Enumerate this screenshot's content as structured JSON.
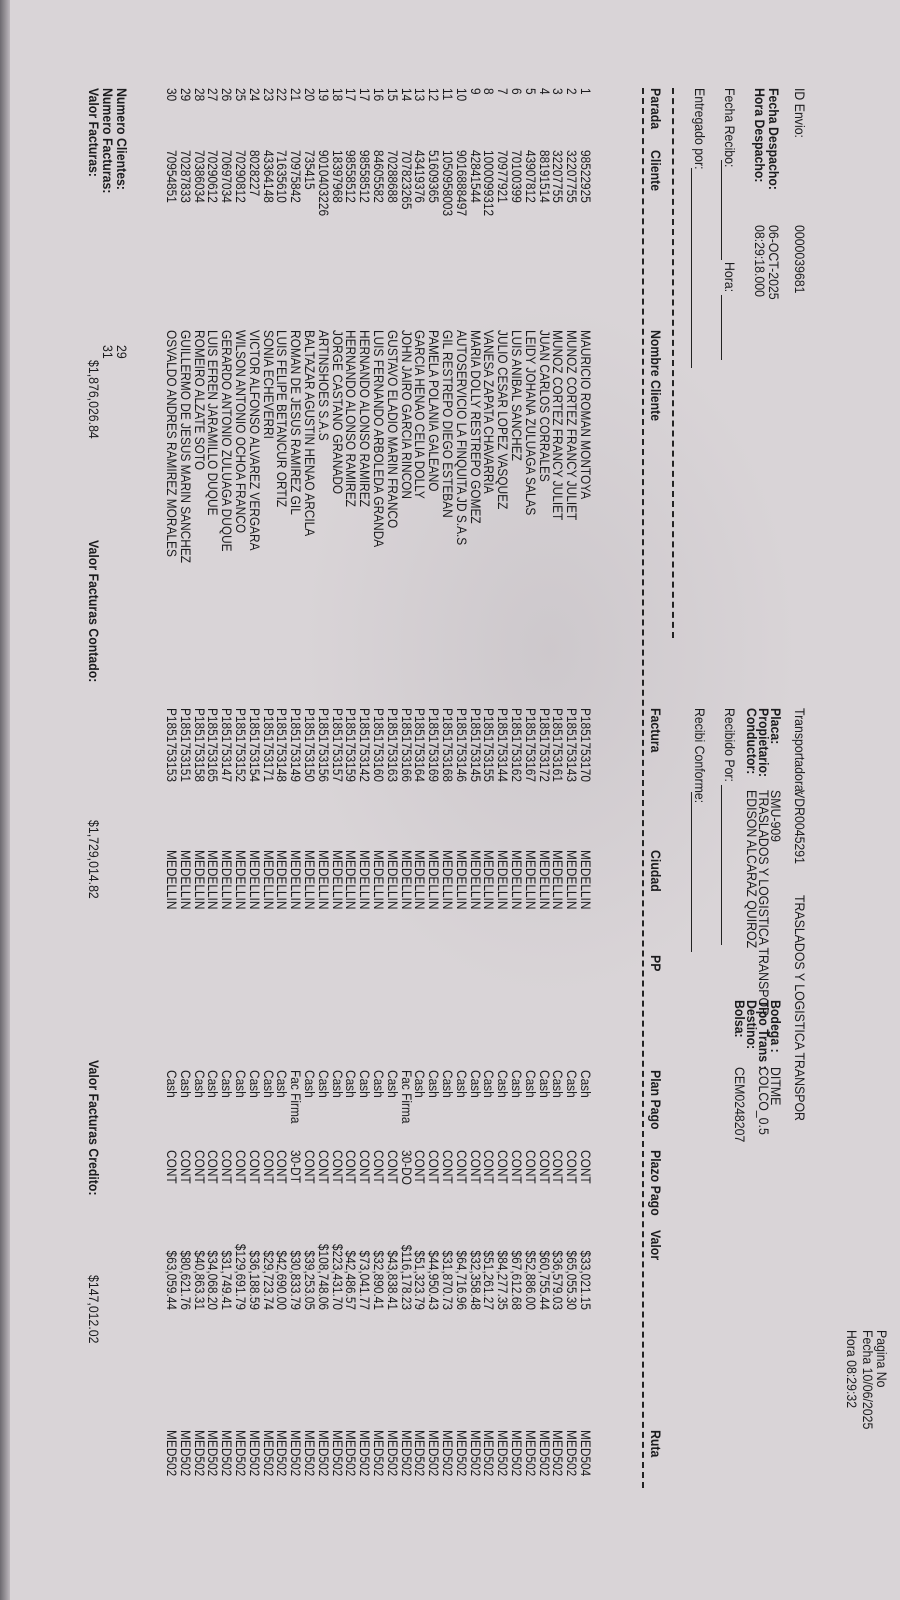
{
  "header": {
    "page_label": "Pagina No",
    "print_date_label": "Fecha",
    "print_date": "10/06/2025",
    "print_time_label": "Hora",
    "print_time": "08:29:32",
    "id_envio_label": "ID Envio:",
    "id_envio": "0000039681",
    "fecha_despacho_label": "Fecha Despacho:",
    "fecha_despacho": "06-OCT-2025",
    "hora_despacho_label": "Hora Despacho:",
    "hora_despacho": "08:29:18.000",
    "transportadora_label": "Transportadora:",
    "transportadora_code": "VDR0045291",
    "transportadora_name": "TRASLADOS Y LOGISTICA TRANSPOR",
    "placa_label": "Placa:",
    "placa": "SMU-909",
    "propietario_label": "Propietario:",
    "propietario": "TRASLADOS Y LOGISTICA TRANSPOR",
    "conductor_label": "Conductor:",
    "conductor": "EDISON ALCARAZ QUIROZ",
    "bodega_label": "Bodega :",
    "bodega": "DITME",
    "tipo_trans_label": "Tipo Trans :",
    "tipo_trans": "COLCO_0.5",
    "destino_label": "Destino:",
    "destino": "",
    "bolsa_label": "Bolsa:",
    "bolsa": "CEM0248207",
    "fecha_recibo_label": "Fecha Recibo:",
    "hora_label": "Hora:",
    "entregado_label": "Entregado por:",
    "recibido_label": "Recibido Por:",
    "recibi_label": "Recibi Conforme:"
  },
  "columns": [
    "Parada",
    "Cliente",
    "Nombre Cliente",
    "Factura",
    "Ciudad",
    "PP",
    "Plan Pago",
    "Plazo Pago",
    "Valor",
    "Ruta"
  ],
  "rows": [
    [
      "1",
      "98522925",
      "MAURICIO ROMAN MONTOYA",
      "P1851753170",
      "MEDELLIN",
      "",
      "Cash",
      "CONT",
      "$33,021.15",
      "MED504"
    ],
    [
      "2",
      "32207755",
      "MUNOZ CORTEZ FRANCY JULIET",
      "P1851753143",
      "MEDELLIN",
      "",
      "Cash",
      "CONT",
      "$65,055.30",
      "MED502"
    ],
    [
      "3",
      "32207755",
      "MUNOZ CORTEZ FRANCY JULIET",
      "P1851753161",
      "MEDELLIN",
      "",
      "Cash",
      "CONT",
      "$36,579.03",
      "MED502"
    ],
    [
      "4",
      "88191514",
      "JUAN CARLOS CORRALES",
      "P1851753172",
      "MEDELLIN",
      "",
      "Cash",
      "CONT",
      "$60,755.44",
      "MED502"
    ],
    [
      "5",
      "43907812",
      "LEIDY JOHANA ZULUAGA SALAS",
      "P1851753167",
      "MEDELLIN",
      "",
      "Cash",
      "CONT",
      "$52,886.00",
      "MED502"
    ],
    [
      "6",
      "70100399",
      "LUIS ANIBAL SANCHEZ",
      "P1851753162",
      "MEDELLIN",
      "",
      "Cash",
      "CONT",
      "$67,612.68",
      "MED502"
    ],
    [
      "7",
      "70977921",
      "JULIO CESAR LOPEZ VASQUEZ",
      "P1851753144",
      "MEDELLIN",
      "",
      "Cash",
      "CONT",
      "$84,277.35",
      "MED502"
    ],
    [
      "8",
      "1000099312",
      "VANESA ZAPATA CHAVARRIA",
      "P1851753155",
      "MEDELLIN",
      "",
      "Cash",
      "CONT",
      "$51,261.27",
      "MED502"
    ],
    [
      "9",
      "42841544",
      "MARIA DOLLY RESTREPO GOMEZ",
      "P1851753145",
      "MEDELLIN",
      "",
      "Cash",
      "CONT",
      "$32,358.48",
      "MED502"
    ],
    [
      "10",
      "9016888497",
      "AUTOSERVICIO LA FINQUITA JD S.A.S",
      "P1851753146",
      "MEDELLIN",
      "",
      "Cash",
      "CONT",
      "$64,716.96",
      "MED502"
    ],
    [
      "11",
      "1050958003",
      "GIL RESTREPO DIEGO ESTEBAN",
      "P1851753168",
      "MEDELLIN",
      "",
      "Cash",
      "CONT",
      "$31,870.73",
      "MED502"
    ],
    [
      "12",
      "51609365",
      "PAMELA POLANIA GALEANO",
      "P1851753169",
      "MEDELLIN",
      "",
      "Cash",
      "CONT",
      "$44,950.43",
      "MED502"
    ],
    [
      "13",
      "43419376",
      "GARCIA HENAO CELIA DOLLY",
      "P1851753164",
      "MEDELLIN",
      "",
      "Cash",
      "CONT",
      "$51,323.79",
      "MED502"
    ],
    [
      "14",
      "707823265",
      "JOHN JAIRO GARCIA RINCON",
      "P1851753166",
      "MEDELLIN",
      "",
      "Fac Firma",
      "30-DO",
      "$116,178.23",
      "MED502"
    ],
    [
      "15",
      "70288688",
      "GUSTAVO ELADIO MARIN FRANCO",
      "P1851753163",
      "MEDELLIN",
      "",
      "Cash",
      "CONT",
      "$43,838.41",
      "MED502"
    ],
    [
      "16",
      "84605582",
      "LUIS FERNANDO ARBOLEDA GRANDA",
      "P1851753160",
      "MEDELLIN",
      "",
      "Cash",
      "CONT",
      "$32,890.41",
      "MED502"
    ],
    [
      "17",
      "98558512",
      "HERNANDO ALONSO RAMIREZ",
      "P1851753142",
      "MEDELLIN",
      "",
      "Cash",
      "CONT",
      "$73,041.77",
      "MED502"
    ],
    [
      "17",
      "98558512",
      "HERNANDO ALONSO RAMIREZ",
      "P1851753159",
      "MEDELLIN",
      "",
      "Cash",
      "CONT",
      "$42,486.57",
      "MED502"
    ],
    [
      "18",
      "18397968",
      "JORGE CASTANO GRANADO",
      "P1851753157",
      "MEDELLIN",
      "",
      "Cash",
      "CONT",
      "$223,431.70",
      "MED502"
    ],
    [
      "19",
      "9010403226",
      "ARTINSHOES S.A.S",
      "P1851753156",
      "MEDELLIN",
      "",
      "Cash",
      "CONT",
      "$108,748.06",
      "MED502"
    ],
    [
      "20",
      "735415",
      "BALTAZAR AGUSTIN HENAO ARCILA",
      "P1851753150",
      "MEDELLIN",
      "",
      "Cash",
      "CONT",
      "$39,253.05",
      "MED502"
    ],
    [
      "21",
      "70975842",
      "ROMAN DE JESUS RAMIREZ GIL",
      "P1851753149",
      "MEDELLIN",
      "",
      "Fac Firma",
      "30-DT",
      "$30,833.79",
      "MED502"
    ],
    [
      "22",
      "71635610",
      "LUIS FELIPE BETANCUR ORTIZ",
      "P1851753148",
      "MEDELLIN",
      "",
      "Cash",
      "CONT",
      "$42,690.00",
      "MED502"
    ],
    [
      "23",
      "43364148",
      "SONIA ECHEVERRI",
      "P1851753171",
      "MEDELLIN",
      "",
      "Cash",
      "CONT",
      "$29,723.74",
      "MED502"
    ],
    [
      "24",
      "8028227",
      "VICTOR ALFONSO ALVAREZ VERGARA",
      "P1851753154",
      "MEDELLIN",
      "",
      "Cash",
      "CONT",
      "$36,188.59",
      "MED502"
    ],
    [
      "25",
      "70290812",
      "WILSON ANTONIO OCHOA FRANCO",
      "P1851753152",
      "MEDELLIN",
      "",
      "Cash",
      "CONT",
      "$129,691.79",
      "MED502"
    ],
    [
      "26",
      "70697034",
      "GERARDO ANTONIO ZULUAGA DUQUE",
      "P1851753147",
      "MEDELLIN",
      "",
      "Cash",
      "CONT",
      "$31,749.41",
      "MED502"
    ],
    [
      "27",
      "70290612",
      "LUIS EFREN JARAMILLO DUQUE",
      "P1851753165",
      "MEDELLIN",
      "",
      "Cash",
      "CONT",
      "$34,068.20",
      "MED502"
    ],
    [
      "28",
      "70386034",
      "ROMEIRO ALZATE SOTO",
      "P1851753158",
      "MEDELLIN",
      "",
      "Cash",
      "CONT",
      "$40,863.31",
      "MED502"
    ],
    [
      "29",
      "70287833",
      "GUILLERMO DE JESUS MARIN SANCHEZ",
      "P1851753151",
      "MEDELLIN",
      "",
      "Cash",
      "CONT",
      "$80,621.76",
      "MED502"
    ],
    [
      "30",
      "70954851",
      "OSVALDO ANDRES RAMIREZ MORALES",
      "P1851753153",
      "MEDELLIN",
      "",
      "Cash",
      "CONT",
      "$63,059.44",
      "MED502"
    ]
  ],
  "footer": {
    "num_clientes_label": "Numero Clientes:",
    "num_clientes": "29",
    "num_facturas_label": "Numero Facturas:",
    "num_facturas": "31",
    "valor_facturas_label": "Valor Facturas:",
    "valor_facturas": "$1,876,026.84",
    "contado_label": "Valor Facturas Contado:",
    "contado": "$1,729,014.82",
    "credito_label": "Valor Facturas Credito:",
    "credito": "$147,012.02"
  }
}
